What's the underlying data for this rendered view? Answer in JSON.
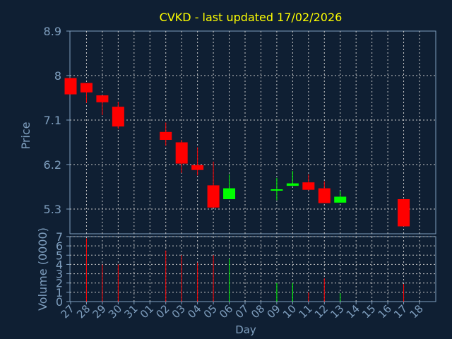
{
  "chart_data": [
    {
      "type": "candlestick",
      "title": "CVKD - last updated 17/02/2026",
      "ylabel": "Price",
      "ylim": [
        4.8,
        8.9
      ],
      "yticks": [
        8.9,
        8,
        7.1,
        6.2,
        5.3
      ],
      "ytick_labels": [
        "8.9",
        "8",
        "7.1",
        "6.2",
        "5.3"
      ],
      "grid": true,
      "colors": {
        "up": "#00ff00",
        "down": "#ff0000",
        "background": "#0f1f33",
        "grid": "#c8c8c8",
        "axis": "#7f9fbf",
        "title": "#ffff00",
        "text": "#7f9fbf"
      },
      "candles": [
        {
          "day": "27",
          "open": 7.95,
          "high": 7.95,
          "low": 7.62,
          "close": 7.62
        },
        {
          "day": "28",
          "open": 7.85,
          "high": 7.85,
          "low": 7.45,
          "close": 7.66
        },
        {
          "day": "29",
          "open": 7.6,
          "high": 7.6,
          "low": 7.2,
          "close": 7.46
        },
        {
          "day": "30",
          "open": 7.37,
          "high": 7.47,
          "low": 6.92,
          "close": 6.97
        },
        {
          "day": "02",
          "open": 6.86,
          "high": 7.05,
          "low": 6.58,
          "close": 6.7
        },
        {
          "day": "03",
          "open": 6.65,
          "high": 6.7,
          "low": 6.03,
          "close": 6.22
        },
        {
          "day": "04",
          "open": 6.19,
          "high": 6.55,
          "low": 5.98,
          "close": 6.09
        },
        {
          "day": "05",
          "open": 5.78,
          "high": 6.26,
          "low": 5.33,
          "close": 5.33
        },
        {
          "day": "06",
          "open": 5.5,
          "high": 6.0,
          "low": 5.5,
          "close": 5.72
        },
        {
          "day": "09",
          "open": 5.7,
          "high": 5.93,
          "low": 5.48,
          "close": 5.7
        },
        {
          "day": "10",
          "open": 5.77,
          "high": 6.07,
          "low": 5.77,
          "close": 5.82
        },
        {
          "day": "11",
          "open": 5.84,
          "high": 6.0,
          "low": 5.68,
          "close": 5.69
        },
        {
          "day": "12",
          "open": 5.72,
          "high": 5.86,
          "low": 5.42,
          "close": 5.42
        },
        {
          "day": "13",
          "open": 5.43,
          "high": 5.66,
          "low": 5.43,
          "close": 5.55
        },
        {
          "day": "17",
          "open": 5.5,
          "high": 5.5,
          "low": 4.95,
          "close": 4.95
        }
      ]
    },
    {
      "type": "bar",
      "xlabel": "Day",
      "ylabel": "Volume (0000)",
      "ylim": [
        0,
        7
      ],
      "yticks": [
        0,
        1,
        2,
        3,
        4,
        5,
        6,
        7
      ],
      "ytick_labels": [
        "0",
        "1",
        "2",
        "3",
        "4",
        "5",
        "6",
        "7"
      ],
      "grid": true,
      "categories": [
        "27",
        "28",
        "29",
        "30",
        "31",
        "01",
        "02",
        "03",
        "04",
        "05",
        "06",
        "07",
        "08",
        "09",
        "10",
        "11",
        "12",
        "13",
        "14",
        "15",
        "16",
        "17",
        "18"
      ],
      "values": [
        null,
        6.8,
        4.0,
        4.0,
        null,
        null,
        5.5,
        5.0,
        4.2,
        5.0,
        4.6,
        null,
        null,
        2.0,
        2.0,
        1.0,
        2.5,
        0.9,
        null,
        null,
        null,
        1.9,
        null
      ],
      "bar_colors": [
        "",
        "#ff0000",
        "#ff0000",
        "#ff0000",
        "",
        "",
        "#ff0000",
        "#ff0000",
        "#ff0000",
        "#ff0000",
        "#00ff00",
        "",
        "",
        "#00ff00",
        "#00ff00",
        "#ff0000",
        "#ff0000",
        "#00ff00",
        "",
        "",
        "",
        "#ff0000",
        ""
      ]
    }
  ]
}
